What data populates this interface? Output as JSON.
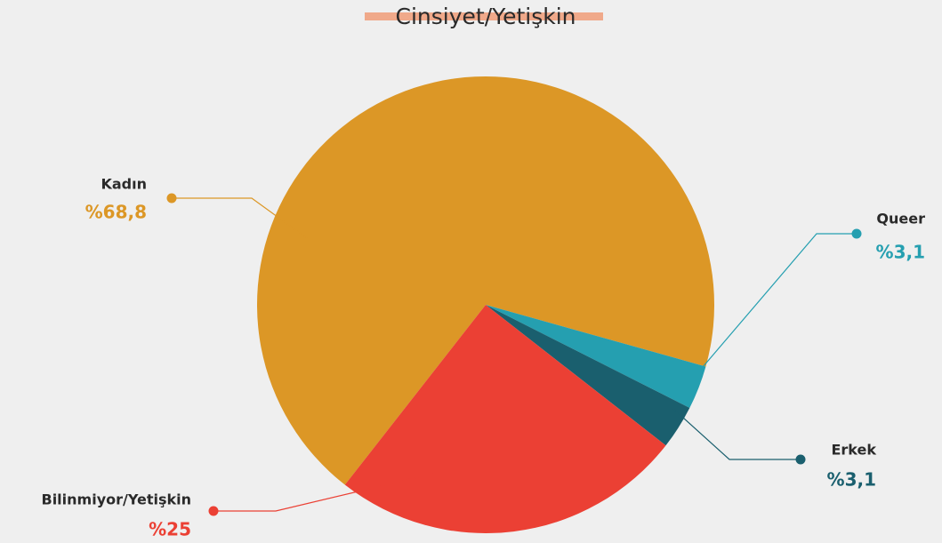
{
  "chart_data": {
    "type": "pie",
    "title": "Cinsiyet/Yetişkin",
    "categories": [
      "Kadın",
      "Queer",
      "Erkek",
      "Bilinmiyor/Yetişkin"
    ],
    "values": [
      68.8,
      3.1,
      3.1,
      25
    ],
    "value_labels": [
      "%68,8",
      "%3,1",
      "%3,1",
      "%25"
    ],
    "colors": [
      "#dc9726",
      "#259fb0",
      "#1a5f6e",
      "#eb4034"
    ]
  }
}
